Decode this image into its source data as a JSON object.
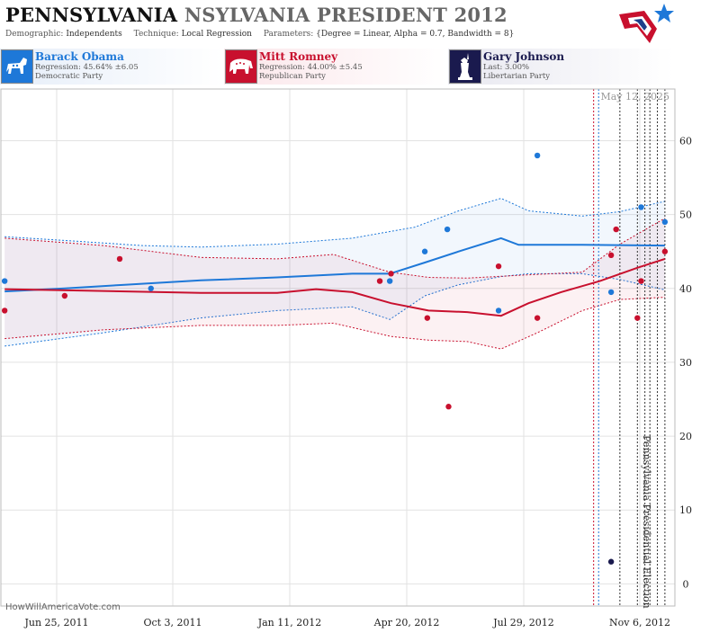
{
  "header": {
    "title_state": "PENNSYLVANIA",
    "title_rest": "NSYLVANIA PRESIDENT 2012",
    "demographic_label": "Demographic:",
    "demographic_value": "Independents",
    "technique_label": "Technique:",
    "technique_value": "Local Regression",
    "parameters_label": "Parameters:",
    "parameters_value": "{Degree = Linear, Alpha = 0.7, Bandwidth = 8}"
  },
  "candidates": [
    {
      "name": "Barack Obama",
      "stat": "Regression: 45.64% ±6.05",
      "party": "Democratic Party",
      "color": "#1e78d8",
      "icon": "donkey-icon"
    },
    {
      "name": "Mitt Romney",
      "stat": "Regression: 44.00% ±5.45",
      "party": "Republican Party",
      "color": "#c8102e",
      "icon": "elephant-icon"
    },
    {
      "name": "Gary Johnson",
      "stat": "Last: 3.00%",
      "party": "Libertarian Party",
      "color": "#1a1a4e",
      "icon": "statue-of-liberty-icon"
    }
  ],
  "chart_data": {
    "type": "scatter",
    "date_label": "May 12, 2025",
    "event_label": "Pennsylvania Presidential Election",
    "watermark": "HowWillAmericaVote.com",
    "x_ticks": [
      "Jun 25, 2011",
      "Oct 3, 2011",
      "Jan 11, 2012",
      "Apr 20, 2012",
      "Jul 29, 2012",
      "Nov 6, 2012"
    ],
    "y_ticks": [
      0,
      10,
      20,
      30,
      40,
      50,
      60
    ],
    "xlim": [
      "2011-05-25",
      "2012-11-14"
    ],
    "ylim": [
      -3,
      67
    ],
    "grid": true,
    "vlines": [
      {
        "date": "2012-09-10",
        "color": "#c8102e"
      },
      {
        "date": "2012-09-14",
        "color": "#1e78d8"
      },
      {
        "date": "2012-10-01",
        "color": "#333333"
      },
      {
        "date": "2012-10-15",
        "color": "#333333"
      },
      {
        "date": "2012-10-21",
        "color": "#333333"
      },
      {
        "date": "2012-10-25",
        "color": "#333333"
      },
      {
        "date": "2012-10-31",
        "color": "#333333"
      },
      {
        "date": "2012-11-06",
        "color": "#333333"
      }
    ],
    "series": [
      {
        "name": "Barack Obama",
        "color": "#1e78d8",
        "points": [
          {
            "x": "2011-05-28",
            "y": 41
          },
          {
            "x": "2011-09-22",
            "y": 40
          },
          {
            "x": "2012-03-31",
            "y": 41
          },
          {
            "x": "2012-04-28",
            "y": 45
          },
          {
            "x": "2012-05-16",
            "y": 48
          },
          {
            "x": "2012-06-26",
            "y": 37
          },
          {
            "x": "2012-07-27",
            "y": 58
          },
          {
            "x": "2012-09-24",
            "y": 39.5
          },
          {
            "x": "2012-10-18",
            "y": 51
          },
          {
            "x": "2012-11-06",
            "y": 49
          }
        ],
        "trend": [
          {
            "x": "2011-05-28",
            "y": 39.6
          },
          {
            "x": "2011-07-15",
            "y": 40
          },
          {
            "x": "2011-09-01",
            "y": 40.5
          },
          {
            "x": "2011-11-01",
            "y": 41.1
          },
          {
            "x": "2012-01-01",
            "y": 41.5
          },
          {
            "x": "2012-03-01",
            "y": 42
          },
          {
            "x": "2012-03-31",
            "y": 42
          },
          {
            "x": "2012-04-28",
            "y": 43.5
          },
          {
            "x": "2012-05-25",
            "y": 45
          },
          {
            "x": "2012-06-28",
            "y": 46.8
          },
          {
            "x": "2012-07-12",
            "y": 45.9
          },
          {
            "x": "2012-09-01",
            "y": 45.9
          },
          {
            "x": "2012-11-06",
            "y": 45.8
          }
        ],
        "upper": [
          {
            "x": "2011-05-28",
            "y": 47
          },
          {
            "x": "2011-07-15",
            "y": 46.5
          },
          {
            "x": "2011-09-15",
            "y": 45.8
          },
          {
            "x": "2011-11-01",
            "y": 45.6
          },
          {
            "x": "2012-01-01",
            "y": 46
          },
          {
            "x": "2012-03-01",
            "y": 46.8
          },
          {
            "x": "2012-04-20",
            "y": 48.3
          },
          {
            "x": "2012-05-25",
            "y": 50.5
          },
          {
            "x": "2012-06-28",
            "y": 52.2
          },
          {
            "x": "2012-07-20",
            "y": 50.5
          },
          {
            "x": "2012-09-01",
            "y": 49.8
          },
          {
            "x": "2012-10-01",
            "y": 50.4
          },
          {
            "x": "2012-11-06",
            "y": 51.8
          }
        ],
        "lower": [
          {
            "x": "2011-05-28",
            "y": 32.2
          },
          {
            "x": "2011-08-15",
            "y": 34
          },
          {
            "x": "2011-11-01",
            "y": 36
          },
          {
            "x": "2012-01-01",
            "y": 37
          },
          {
            "x": "2012-03-01",
            "y": 37.5
          },
          {
            "x": "2012-03-31",
            "y": 35.8
          },
          {
            "x": "2012-04-28",
            "y": 39
          },
          {
            "x": "2012-05-25",
            "y": 40.5
          },
          {
            "x": "2012-06-28",
            "y": 41.6
          },
          {
            "x": "2012-07-20",
            "y": 42
          },
          {
            "x": "2012-09-01",
            "y": 42
          },
          {
            "x": "2012-10-01",
            "y": 41.2
          },
          {
            "x": "2012-11-06",
            "y": 39.8
          }
        ]
      },
      {
        "name": "Mitt Romney",
        "color": "#c8102e",
        "points": [
          {
            "x": "2011-05-28",
            "y": 37
          },
          {
            "x": "2011-07-15",
            "y": 39
          },
          {
            "x": "2011-08-28",
            "y": 44
          },
          {
            "x": "2012-03-23",
            "y": 41
          },
          {
            "x": "2012-04-01",
            "y": 42
          },
          {
            "x": "2012-04-30",
            "y": 36
          },
          {
            "x": "2012-05-17",
            "y": 24
          },
          {
            "x": "2012-06-26",
            "y": 43
          },
          {
            "x": "2012-07-27",
            "y": 36
          },
          {
            "x": "2012-09-24",
            "y": 44.5
          },
          {
            "x": "2012-09-28",
            "y": 48
          },
          {
            "x": "2012-10-15",
            "y": 36
          },
          {
            "x": "2012-10-18",
            "y": 41
          },
          {
            "x": "2012-11-06",
            "y": 45
          }
        ],
        "trend": [
          {
            "x": "2011-05-28",
            "y": 39.9
          },
          {
            "x": "2011-08-01",
            "y": 39.7
          },
          {
            "x": "2011-11-01",
            "y": 39.4
          },
          {
            "x": "2012-01-01",
            "y": 39.4
          },
          {
            "x": "2012-02-01",
            "y": 39.9
          },
          {
            "x": "2012-03-01",
            "y": 39.5
          },
          {
            "x": "2012-04-01",
            "y": 38
          },
          {
            "x": "2012-05-01",
            "y": 37
          },
          {
            "x": "2012-06-01",
            "y": 36.8
          },
          {
            "x": "2012-06-28",
            "y": 36.3
          },
          {
            "x": "2012-07-20",
            "y": 38
          },
          {
            "x": "2012-08-15",
            "y": 39.5
          },
          {
            "x": "2012-09-15",
            "y": 41
          },
          {
            "x": "2012-10-15",
            "y": 42.8
          },
          {
            "x": "2012-11-06",
            "y": 44
          }
        ],
        "upper": [
          {
            "x": "2011-05-28",
            "y": 46.8
          },
          {
            "x": "2011-08-15",
            "y": 45.8
          },
          {
            "x": "2011-11-01",
            "y": 44.2
          },
          {
            "x": "2012-01-01",
            "y": 44
          },
          {
            "x": "2012-02-15",
            "y": 44.6
          },
          {
            "x": "2012-03-31",
            "y": 42.2
          },
          {
            "x": "2012-05-01",
            "y": 41.5
          },
          {
            "x": "2012-06-01",
            "y": 41.4
          },
          {
            "x": "2012-07-15",
            "y": 41.8
          },
          {
            "x": "2012-09-01",
            "y": 42.2
          },
          {
            "x": "2012-10-01",
            "y": 46
          },
          {
            "x": "2012-11-06",
            "y": 49.5
          }
        ],
        "lower": [
          {
            "x": "2011-05-28",
            "y": 33.2
          },
          {
            "x": "2011-08-15",
            "y": 34.4
          },
          {
            "x": "2011-11-01",
            "y": 35
          },
          {
            "x": "2012-01-01",
            "y": 35
          },
          {
            "x": "2012-02-15",
            "y": 35.3
          },
          {
            "x": "2012-04-01",
            "y": 33.5
          },
          {
            "x": "2012-05-01",
            "y": 33
          },
          {
            "x": "2012-06-01",
            "y": 32.8
          },
          {
            "x": "2012-06-28",
            "y": 31.8
          },
          {
            "x": "2012-07-27",
            "y": 34
          },
          {
            "x": "2012-09-01",
            "y": 37
          },
          {
            "x": "2012-10-01",
            "y": 38.5
          },
          {
            "x": "2012-11-06",
            "y": 38.8
          }
        ]
      },
      {
        "name": "Gary Johnson",
        "color": "#1a1a4e",
        "points": [
          {
            "x": "2012-09-24",
            "y": 3
          }
        ]
      }
    ]
  }
}
